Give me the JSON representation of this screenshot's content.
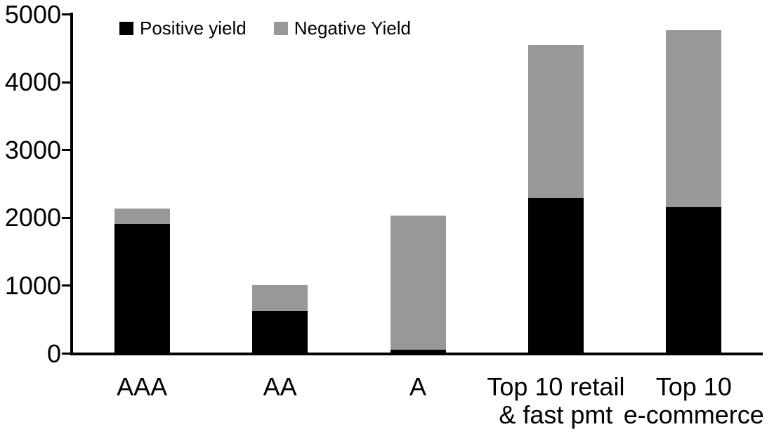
{
  "chart_data": {
    "type": "bar",
    "stacked": true,
    "title": "",
    "xlabel": "",
    "ylabel": "",
    "categories": [
      "AAA",
      "AA",
      "A",
      "Top 10 retail\n& fast pmt",
      "Top 10\ne-commerce"
    ],
    "series": [
      {
        "name": "Positive yield",
        "color": "#000000",
        "values": [
          1900,
          620,
          50,
          2290,
          2150
        ]
      },
      {
        "name": "Negative Yield",
        "color": "#989898",
        "values": [
          230,
          380,
          1980,
          2250,
          2610
        ]
      }
    ],
    "totals": [
      2130,
      1000,
      2030,
      4540,
      4760
    ],
    "ylim": [
      0,
      5000
    ],
    "yticks": [
      0,
      1000,
      2000,
      3000,
      4000,
      5000
    ],
    "grid": false,
    "legend_position": "top-left",
    "axis_color": "#000000",
    "background_color": "#ffffff"
  }
}
